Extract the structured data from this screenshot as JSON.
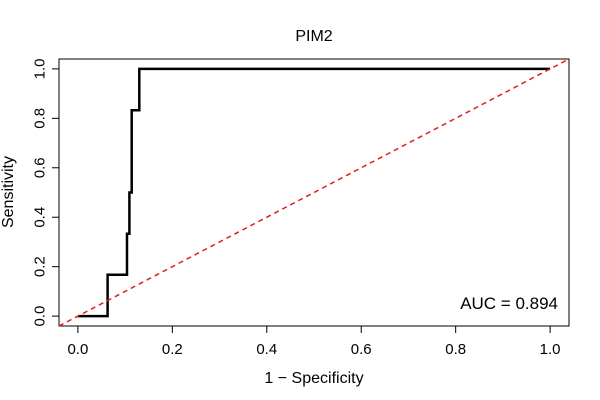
{
  "chart_data": {
    "type": "line",
    "title": "PIM2",
    "xlabel": "1 − Specificity",
    "ylabel": "Sensitivity",
    "xlim": [
      -0.04,
      1.04
    ],
    "ylim": [
      -0.04,
      1.04
    ],
    "xticks": [
      0.0,
      0.2,
      0.4,
      0.6,
      0.8,
      1.0
    ],
    "yticks": [
      0.0,
      0.2,
      0.4,
      0.6,
      0.8,
      1.0
    ],
    "x_tick_labels": [
      "0.0",
      "0.2",
      "0.4",
      "0.6",
      "0.8",
      "1.0"
    ],
    "y_tick_labels": [
      "0.0",
      "0.2",
      "0.4",
      "0.6",
      "0.8",
      "1.0"
    ],
    "grid": false,
    "annotation": "AUC = 0.894",
    "series": [
      {
        "color": "#000000",
        "style": "solid",
        "x": [
          0.0,
          0.063,
          0.063,
          0.104,
          0.104,
          0.109,
          0.109,
          0.114,
          0.114,
          0.12,
          0.12,
          0.13,
          0.13,
          1.0
        ],
        "y": [
          0.0,
          0.0,
          0.167,
          0.167,
          0.333,
          0.333,
          0.5,
          0.5,
          0.833,
          0.833,
          0.833,
          0.833,
          1.0,
          1.0
        ]
      },
      {
        "color": "#e41a1c",
        "style": "dashed",
        "x": [
          -0.04,
          1.04
        ],
        "y": [
          -0.04,
          1.04
        ]
      }
    ]
  }
}
